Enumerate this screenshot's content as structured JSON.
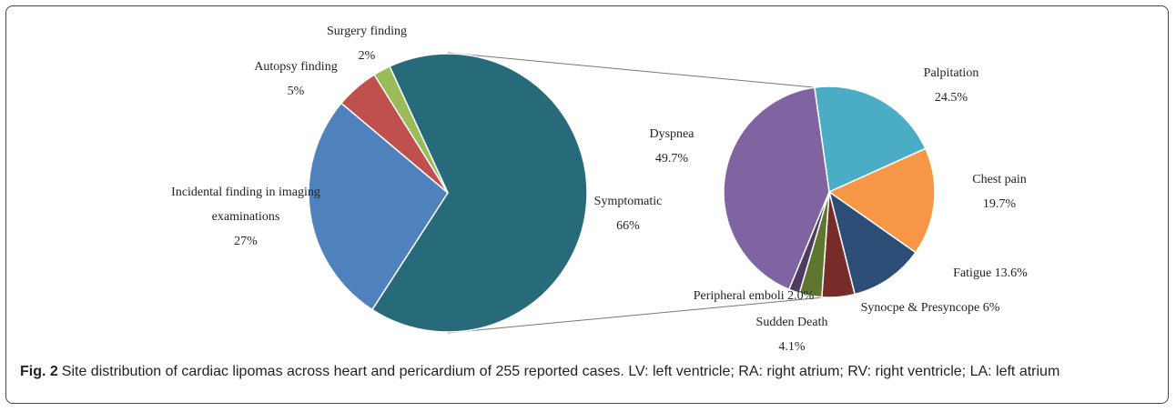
{
  "chart_data": [
    {
      "type": "pie",
      "categories": [
        "Symptomatic",
        "Incidental finding in imaging examinations",
        "Autopsy finding",
        "Surgery finding"
      ],
      "values": [
        66,
        27,
        5,
        2
      ],
      "value_labels": [
        "66%",
        "27%",
        "5%",
        "2%"
      ],
      "colors": [
        "#276a7a",
        "#4f81bd",
        "#c0504d",
        "#9bbb59"
      ]
    },
    {
      "type": "pie",
      "categories": [
        "Palpitation",
        "Chest pain",
        "Fatigue",
        "Synocpe & Presyncope",
        "Sudden Death",
        "Peripheral emboli",
        "Dyspnea"
      ],
      "values": [
        24.5,
        19.7,
        13.6,
        6,
        4.1,
        2.0,
        49.7
      ],
      "value_labels": [
        "24.5%",
        "19.7%",
        "13.6%",
        "6%",
        "4.1%",
        "2.0%",
        "49.7%"
      ],
      "colors": [
        "#4bacc6",
        "#f79646",
        "#2c4d75",
        "#772c2a",
        "#5f7530",
        "#4d3b62",
        "#8064a2"
      ]
    }
  ],
  "caption": {
    "label": "Fig. 2",
    "text": "Site distribution of cardiac lipomas across heart and pericardium of 255 reported cases. LV: left ventricle; RA: right atrium; RV: right ventricle; LA: left atrium"
  }
}
